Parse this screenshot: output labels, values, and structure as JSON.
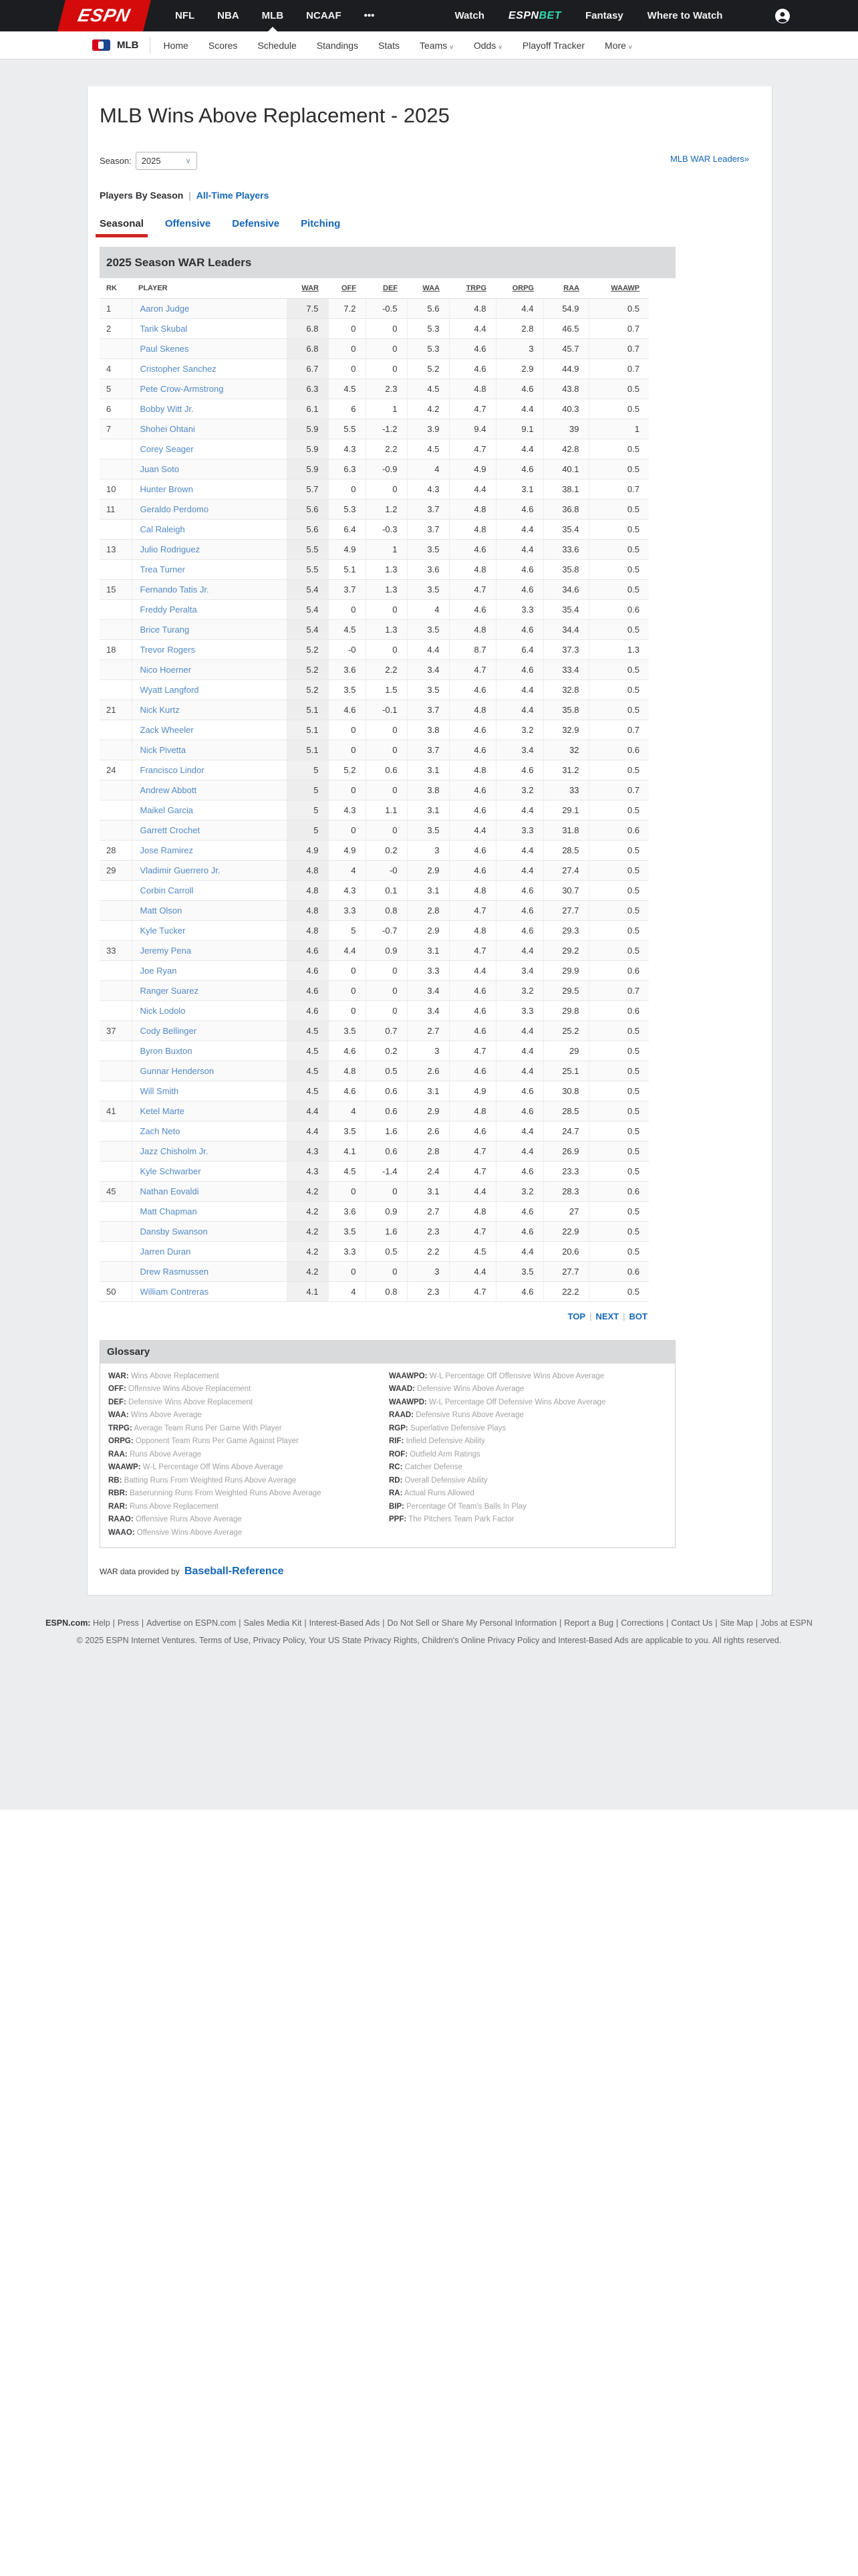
{
  "topnav": {
    "brand": "ESPN",
    "leagues": [
      {
        "label": "NFL",
        "active": false
      },
      {
        "label": "NBA",
        "active": false
      },
      {
        "label": "MLB",
        "active": true
      },
      {
        "label": "NCAAF",
        "active": false
      },
      {
        "label": "•••",
        "active": false
      }
    ],
    "watch_label": "Watch",
    "espn_bet": {
      "espn": "ESPN",
      "bet": "BET"
    },
    "fantasy_label": "Fantasy",
    "where_to_watch_label": "Where to Watch",
    "profile_icon": "user-icon"
  },
  "subnav": {
    "sport": "MLB",
    "logo_icon": "mlb-logo",
    "links": [
      {
        "label": "Home",
        "caret": false
      },
      {
        "label": "Scores",
        "caret": false
      },
      {
        "label": "Schedule",
        "caret": false
      },
      {
        "label": "Standings",
        "caret": false
      },
      {
        "label": "Stats",
        "caret": false
      },
      {
        "label": "Teams",
        "caret": true
      },
      {
        "label": "Odds",
        "caret": true
      },
      {
        "label": "Playoff Tracker",
        "caret": false
      },
      {
        "label": "More",
        "caret": true
      }
    ]
  },
  "header": {
    "title": "MLB Wins Above Replacement - 2025",
    "season_label": "Season:",
    "season_value": "2025",
    "war_leaders_link": "MLB WAR Leaders»",
    "filter_static": "Players By Season",
    "filter_sep": "|",
    "filter_link": "All-Time Players"
  },
  "tabs": [
    {
      "label": "Seasonal",
      "active": true
    },
    {
      "label": "Offensive",
      "active": false
    },
    {
      "label": "Defensive",
      "active": false
    },
    {
      "label": "Pitching",
      "active": false
    }
  ],
  "table": {
    "module_title": "2025 Season WAR Leaders",
    "headers": [
      {
        "label": "RK",
        "sortable": false
      },
      {
        "label": "PLAYER",
        "sortable": false
      },
      {
        "label": "WAR",
        "sortable": true
      },
      {
        "label": "OFF",
        "sortable": true
      },
      {
        "label": "DEF",
        "sortable": true
      },
      {
        "label": "WAA",
        "sortable": true
      },
      {
        "label": "TRPG",
        "sortable": true
      },
      {
        "label": "ORPG",
        "sortable": true
      },
      {
        "label": "RAA",
        "sortable": true
      },
      {
        "label": "WAAWP",
        "sortable": true
      }
    ],
    "rows": [
      [
        "1",
        "Aaron Judge",
        "7.5",
        "7.2",
        "-0.5",
        "5.6",
        "4.8",
        "4.4",
        "54.9",
        "0.5"
      ],
      [
        "2",
        "Tarik Skubal",
        "6.8",
        "0",
        "0",
        "5.3",
        "4.4",
        "2.8",
        "46.5",
        "0.7"
      ],
      [
        "",
        "Paul Skenes",
        "6.8",
        "0",
        "0",
        "5.3",
        "4.6",
        "3",
        "45.7",
        "0.7"
      ],
      [
        "4",
        "Cristopher Sanchez",
        "6.7",
        "0",
        "0",
        "5.2",
        "4.6",
        "2.9",
        "44.9",
        "0.7"
      ],
      [
        "5",
        "Pete Crow-Armstrong",
        "6.3",
        "4.5",
        "2.3",
        "4.5",
        "4.8",
        "4.6",
        "43.8",
        "0.5"
      ],
      [
        "6",
        "Bobby Witt Jr.",
        "6.1",
        "6",
        "1",
        "4.2",
        "4.7",
        "4.4",
        "40.3",
        "0.5"
      ],
      [
        "7",
        "Shohei Ohtani",
        "5.9",
        "5.5",
        "-1.2",
        "3.9",
        "9.4",
        "9.1",
        "39",
        "1"
      ],
      [
        "",
        "Corey Seager",
        "5.9",
        "4.3",
        "2.2",
        "4.5",
        "4.7",
        "4.4",
        "42.8",
        "0.5"
      ],
      [
        "",
        "Juan Soto",
        "5.9",
        "6.3",
        "-0.9",
        "4",
        "4.9",
        "4.6",
        "40.1",
        "0.5"
      ],
      [
        "10",
        "Hunter Brown",
        "5.7",
        "0",
        "0",
        "4.3",
        "4.4",
        "3.1",
        "38.1",
        "0.7"
      ],
      [
        "11",
        "Geraldo Perdomo",
        "5.6",
        "5.3",
        "1.2",
        "3.7",
        "4.8",
        "4.6",
        "36.8",
        "0.5"
      ],
      [
        "",
        "Cal Raleigh",
        "5.6",
        "6.4",
        "-0.3",
        "3.7",
        "4.8",
        "4.4",
        "35.4",
        "0.5"
      ],
      [
        "13",
        "Julio Rodriguez",
        "5.5",
        "4.9",
        "1",
        "3.5",
        "4.6",
        "4.4",
        "33.6",
        "0.5"
      ],
      [
        "",
        "Trea Turner",
        "5.5",
        "5.1",
        "1.3",
        "3.6",
        "4.8",
        "4.6",
        "35.8",
        "0.5"
      ],
      [
        "15",
        "Fernando Tatis Jr.",
        "5.4",
        "3.7",
        "1.3",
        "3.5",
        "4.7",
        "4.6",
        "34.6",
        "0.5"
      ],
      [
        "",
        "Freddy Peralta",
        "5.4",
        "0",
        "0",
        "4",
        "4.6",
        "3.3",
        "35.4",
        "0.6"
      ],
      [
        "",
        "Brice Turang",
        "5.4",
        "4.5",
        "1.3",
        "3.5",
        "4.8",
        "4.6",
        "34.4",
        "0.5"
      ],
      [
        "18",
        "Trevor Rogers",
        "5.2",
        "-0",
        "0",
        "4.4",
        "8.7",
        "6.4",
        "37.3",
        "1.3"
      ],
      [
        "",
        "Nico Hoerner",
        "5.2",
        "3.6",
        "2.2",
        "3.4",
        "4.7",
        "4.6",
        "33.4",
        "0.5"
      ],
      [
        "",
        "Wyatt Langford",
        "5.2",
        "3.5",
        "1.5",
        "3.5",
        "4.6",
        "4.4",
        "32.8",
        "0.5"
      ],
      [
        "21",
        "Nick Kurtz",
        "5.1",
        "4.6",
        "-0.1",
        "3.7",
        "4.8",
        "4.4",
        "35.8",
        "0.5"
      ],
      [
        "",
        "Zack Wheeler",
        "5.1",
        "0",
        "0",
        "3.8",
        "4.6",
        "3.2",
        "32.9",
        "0.7"
      ],
      [
        "",
        "Nick Pivetta",
        "5.1",
        "0",
        "0",
        "3.7",
        "4.6",
        "3.4",
        "32",
        "0.6"
      ],
      [
        "24",
        "Francisco Lindor",
        "5",
        "5.2",
        "0.6",
        "3.1",
        "4.8",
        "4.6",
        "31.2",
        "0.5"
      ],
      [
        "",
        "Andrew Abbott",
        "5",
        "0",
        "0",
        "3.8",
        "4.6",
        "3.2",
        "33",
        "0.7"
      ],
      [
        "",
        "Maikel Garcia",
        "5",
        "4.3",
        "1.1",
        "3.1",
        "4.6",
        "4.4",
        "29.1",
        "0.5"
      ],
      [
        "",
        "Garrett Crochet",
        "5",
        "0",
        "0",
        "3.5",
        "4.4",
        "3.3",
        "31.8",
        "0.6"
      ],
      [
        "28",
        "Jose Ramirez",
        "4.9",
        "4.9",
        "0.2",
        "3",
        "4.6",
        "4.4",
        "28.5",
        "0.5"
      ],
      [
        "29",
        "Vladimir Guerrero Jr.",
        "4.8",
        "4",
        "-0",
        "2.9",
        "4.6",
        "4.4",
        "27.4",
        "0.5"
      ],
      [
        "",
        "Corbin Carroll",
        "4.8",
        "4.3",
        "0.1",
        "3.1",
        "4.8",
        "4.6",
        "30.7",
        "0.5"
      ],
      [
        "",
        "Matt Olson",
        "4.8",
        "3.3",
        "0.8",
        "2.8",
        "4.7",
        "4.6",
        "27.7",
        "0.5"
      ],
      [
        "",
        "Kyle Tucker",
        "4.8",
        "5",
        "-0.7",
        "2.9",
        "4.8",
        "4.6",
        "29.3",
        "0.5"
      ],
      [
        "33",
        "Jeremy Pena",
        "4.6",
        "4.4",
        "0.9",
        "3.1",
        "4.7",
        "4.4",
        "29.2",
        "0.5"
      ],
      [
        "",
        "Joe Ryan",
        "4.6",
        "0",
        "0",
        "3.3",
        "4.4",
        "3.4",
        "29.9",
        "0.6"
      ],
      [
        "",
        "Ranger Suarez",
        "4.6",
        "0",
        "0",
        "3.4",
        "4.6",
        "3.2",
        "29.5",
        "0.7"
      ],
      [
        "",
        "Nick Lodolo",
        "4.6",
        "0",
        "0",
        "3.4",
        "4.6",
        "3.3",
        "29.8",
        "0.6"
      ],
      [
        "37",
        "Cody Bellinger",
        "4.5",
        "3.5",
        "0.7",
        "2.7",
        "4.6",
        "4.4",
        "25.2",
        "0.5"
      ],
      [
        "",
        "Byron Buxton",
        "4.5",
        "4.6",
        "0.2",
        "3",
        "4.7",
        "4.4",
        "29",
        "0.5"
      ],
      [
        "",
        "Gunnar Henderson",
        "4.5",
        "4.8",
        "0.5",
        "2.6",
        "4.6",
        "4.4",
        "25.1",
        "0.5"
      ],
      [
        "",
        "Will Smith",
        "4.5",
        "4.6",
        "0.6",
        "3.1",
        "4.9",
        "4.6",
        "30.8",
        "0.5"
      ],
      [
        "41",
        "Ketel Marte",
        "4.4",
        "4",
        "0.6",
        "2.9",
        "4.8",
        "4.6",
        "28.5",
        "0.5"
      ],
      [
        "",
        "Zach Neto",
        "4.4",
        "3.5",
        "1.6",
        "2.6",
        "4.6",
        "4.4",
        "24.7",
        "0.5"
      ],
      [
        "",
        "Jazz Chisholm Jr.",
        "4.3",
        "4.1",
        "0.6",
        "2.8",
        "4.7",
        "4.4",
        "26.9",
        "0.5"
      ],
      [
        "",
        "Kyle Schwarber",
        "4.3",
        "4.5",
        "-1.4",
        "2.4",
        "4.7",
        "4.6",
        "23.3",
        "0.5"
      ],
      [
        "45",
        "Nathan Eovaldi",
        "4.2",
        "0",
        "0",
        "3.1",
        "4.4",
        "3.2",
        "28.3",
        "0.6"
      ],
      [
        "",
        "Matt Chapman",
        "4.2",
        "3.6",
        "0.9",
        "2.7",
        "4.8",
        "4.6",
        "27",
        "0.5"
      ],
      [
        "",
        "Dansby Swanson",
        "4.2",
        "3.5",
        "1.6",
        "2.3",
        "4.7",
        "4.6",
        "22.9",
        "0.5"
      ],
      [
        "",
        "Jarren Duran",
        "4.2",
        "3.3",
        "0.5",
        "2.2",
        "4.5",
        "4.4",
        "20.6",
        "0.5"
      ],
      [
        "",
        "Drew Rasmussen",
        "4.2",
        "0",
        "0",
        "3",
        "4.4",
        "3.5",
        "27.7",
        "0.6"
      ],
      [
        "50",
        "William Contreras",
        "4.1",
        "4",
        "0.8",
        "2.3",
        "4.7",
        "4.6",
        "22.2",
        "0.5"
      ]
    ]
  },
  "pager": {
    "top": "TOP",
    "next": "NEXT",
    "bot": "BOT",
    "sep": "|"
  },
  "glossary": {
    "title": "Glossary",
    "left": [
      {
        "term": "WAR:",
        "def": "Wins Above Replacement"
      },
      {
        "term": "OFF:",
        "def": "Offensive Wins Above Replacement"
      },
      {
        "term": "DEF:",
        "def": "Defensive Wins Above Replacement"
      },
      {
        "term": "WAA:",
        "def": "Wins Above Average"
      },
      {
        "term": "TRPG:",
        "def": "Average Team Runs Per Game With Player"
      },
      {
        "term": "ORPG:",
        "def": "Opponent Team Runs Per Game Against Player"
      },
      {
        "term": "RAA:",
        "def": "Runs Above Average"
      },
      {
        "term": "WAAWP:",
        "def": "W-L Percentage Off Wins Above Average"
      },
      {
        "term": "RB:",
        "def": "Batting Runs From Weighted Runs Above Average"
      },
      {
        "term": "RBR:",
        "def": "Baserunning Runs From Weighted Runs Above Average"
      },
      {
        "term": "RAR:",
        "def": "Runs Above Replacement"
      },
      {
        "term": "RAAO:",
        "def": "Offensive Runs Above Average"
      },
      {
        "term": "WAAO:",
        "def": "Offensive Wins Above Average"
      }
    ],
    "right": [
      {
        "term": "WAAWPO:",
        "def": "W-L Percentage Off Offensive Wins Above Average"
      },
      {
        "term": "WAAD:",
        "def": "Defensive Wins Above Average"
      },
      {
        "term": "WAAWPD:",
        "def": "W-L Percentage Off Defensive Wins Above Average"
      },
      {
        "term": "RAAD:",
        "def": "Defensive Runs Above Average"
      },
      {
        "term": "RGP:",
        "def": "Superlative Defensive Plays"
      },
      {
        "term": "RIF:",
        "def": "Infield Defensive Ability"
      },
      {
        "term": "ROF:",
        "def": "Outfield Arm Ratings"
      },
      {
        "term": "RC:",
        "def": "Catcher Defense"
      },
      {
        "term": "RD:",
        "def": "Overall Defensive Ability"
      },
      {
        "term": "RA:",
        "def": "Actual Runs Allowed"
      },
      {
        "term": "BIP:",
        "def": "Percentage Of Team's Balls In Play"
      },
      {
        "term": "PPF:",
        "def": "The Pitchers Team Park Factor"
      }
    ]
  },
  "credit": {
    "text": "WAR data provided by",
    "link": "Baseball-Reference"
  },
  "footer": {
    "prefix": "ESPN.com:",
    "links": [
      "Help",
      "Press",
      "Advertise on ESPN.com",
      "Sales Media Kit",
      "Interest-Based Ads",
      "Do Not Sell or Share My Personal Information",
      "Report a Bug",
      "Corrections",
      "Contact Us",
      "Site Map",
      "Jobs at ESPN"
    ],
    "copyright": "© 2025 ESPN Internet Ventures. Terms of Use, Privacy Policy, Your US State Privacy Rights, Children's Online Privacy Policy and Interest-Based Ads are applicable to you. All rights reserved."
  },
  "colors": {
    "espn_red": "#d50a0a",
    "tab_underline": "#d02422",
    "link_blue": "#1466b8",
    "player_blue": "#5289c7",
    "bet_teal": "#32d9ae"
  }
}
